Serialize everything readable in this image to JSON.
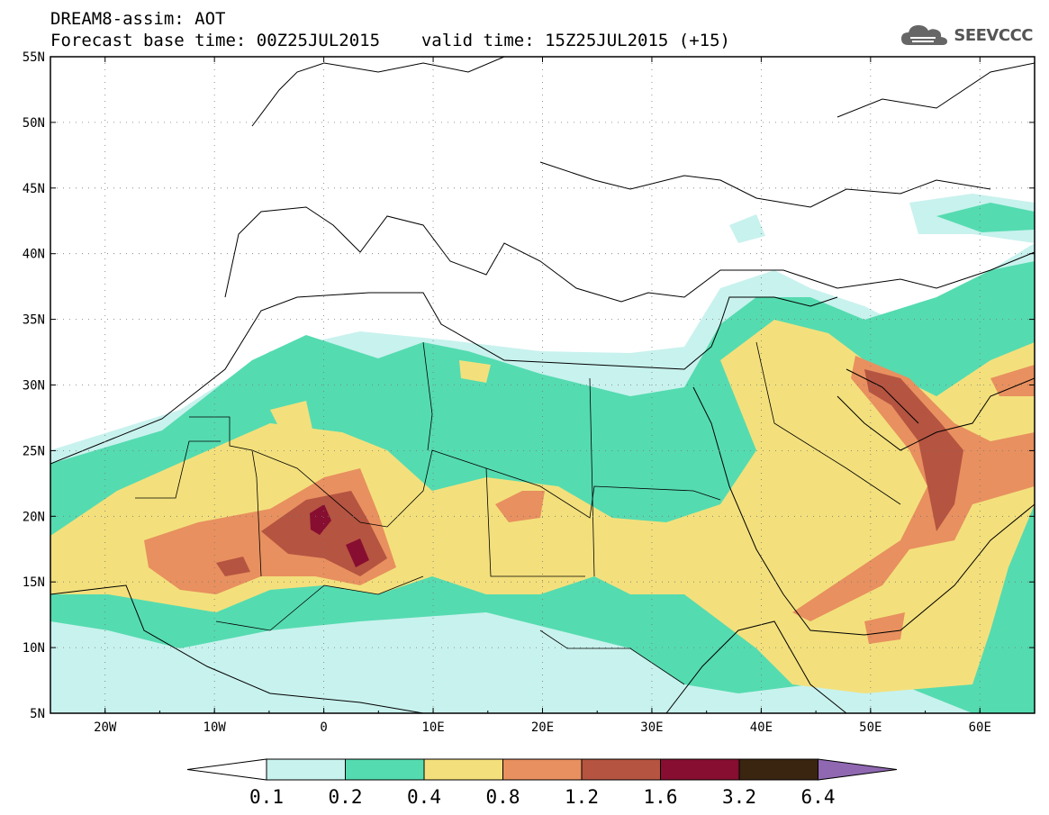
{
  "header": {
    "title": "DREAM8-assim: AOT",
    "subtitle_base": "Forecast base time: 00Z25JUL2015",
    "subtitle_valid": "valid time: 15Z25JUL2015 (+15)"
  },
  "logo": {
    "text": "SEEVCCC",
    "icon": "cloud-icon"
  },
  "map": {
    "lat_labels": [
      "55N",
      "50N",
      "45N",
      "40N",
      "35N",
      "30N",
      "25N",
      "20N",
      "15N",
      "10N",
      "5N"
    ],
    "lon_labels": [
      "20W",
      "10W",
      "0",
      "10E",
      "20E",
      "30E",
      "40E",
      "50E",
      "60E"
    ],
    "lon_range": [
      -25,
      65
    ],
    "lat_range": [
      5,
      55
    ],
    "variable": "AOT"
  },
  "colorbar": {
    "labels": [
      "0.1",
      "0.2",
      "0.4",
      "0.8",
      "1.2",
      "1.6",
      "3.2",
      "6.4"
    ],
    "colors": [
      "#ffffff",
      "#c8f2ee",
      "#55dbb0",
      "#f3e07c",
      "#e8905f",
      "#b55441",
      "#870e30",
      "#3a2510",
      "#8f68b1"
    ]
  }
}
